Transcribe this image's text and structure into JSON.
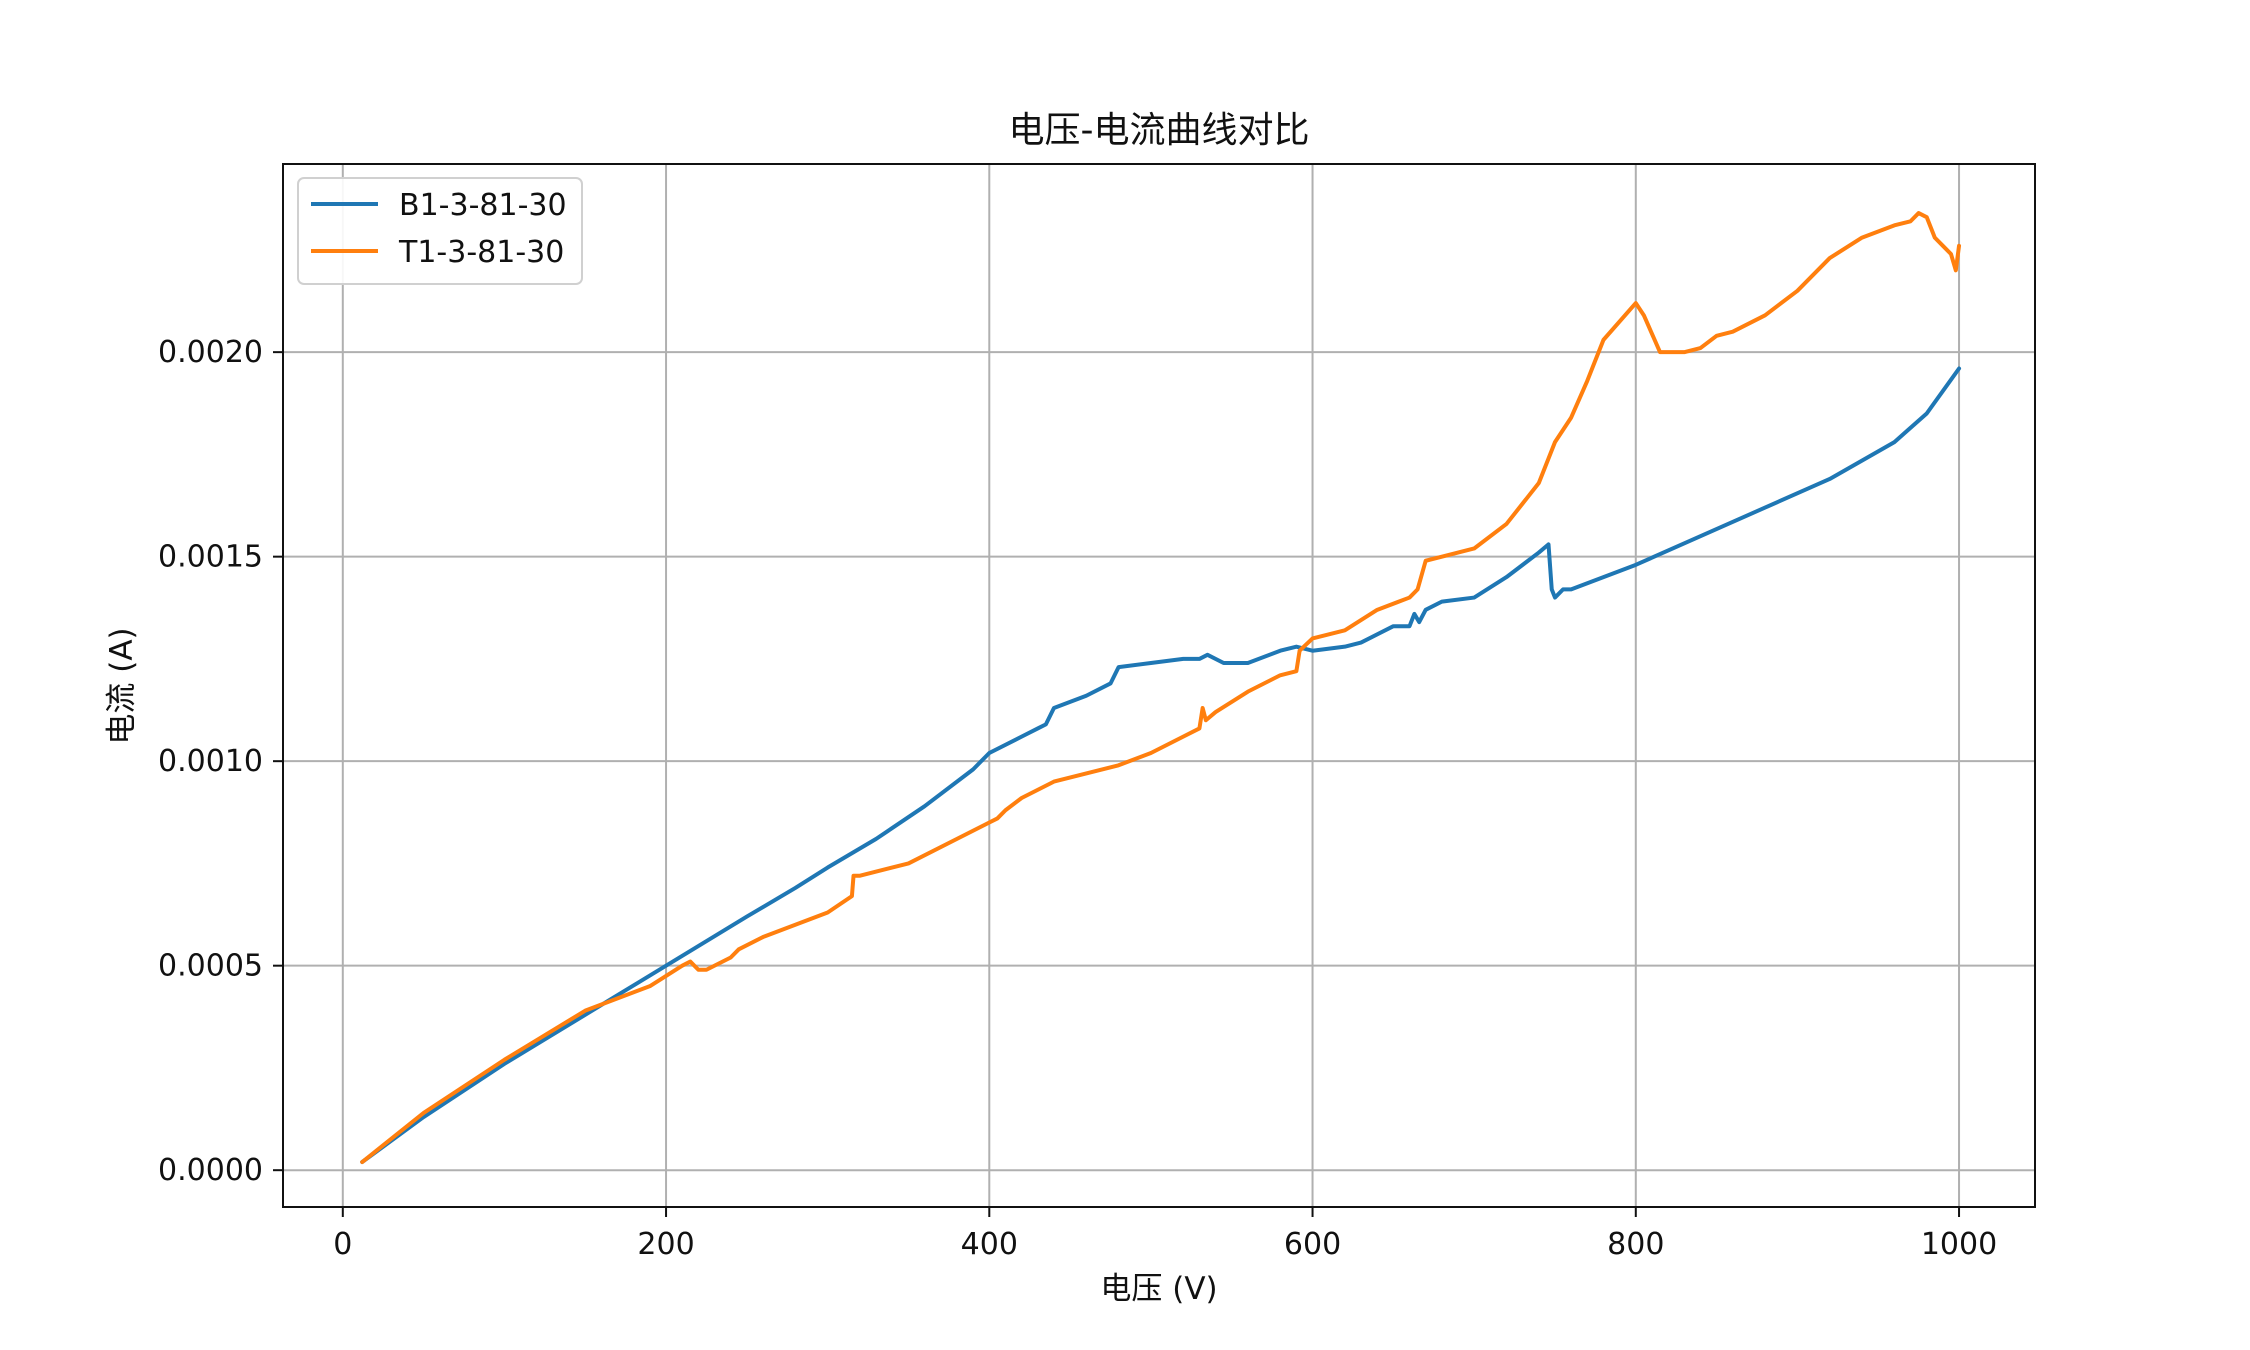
{
  "chart_data": {
    "type": "line",
    "title": "电压-电流曲线对比",
    "xlabel": "电压 (V)",
    "ylabel": "电流 (A)",
    "xlim": [
      -37,
      1047
    ],
    "ylim": [
      -9e-05,
      0.00246
    ],
    "xticks": [
      0,
      200,
      400,
      600,
      800,
      1000
    ],
    "xtick_labels": [
      "0",
      "200",
      "400",
      "600",
      "800",
      "1000"
    ],
    "yticks": [
      0.0,
      0.0005,
      0.001,
      0.0015,
      0.002
    ],
    "ytick_labels": [
      "0.0000",
      "0.0005",
      "0.0010",
      "0.0015",
      "0.0020"
    ],
    "grid": true,
    "legend_position": "top-left",
    "series": [
      {
        "name": "B1-3-81-30",
        "color": "#1f77b4",
        "x": [
          12,
          50,
          100,
          150,
          200,
          250,
          280,
          300,
          330,
          360,
          390,
          400,
          420,
          430,
          435,
          440,
          460,
          475,
          480,
          500,
          520,
          530,
          535,
          545,
          560,
          580,
          590,
          600,
          620,
          630,
          650,
          660,
          663,
          666,
          670,
          680,
          700,
          720,
          740,
          746,
          748,
          750,
          755,
          760,
          780,
          800,
          840,
          880,
          920,
          960,
          980,
          1000
        ],
        "values": [
          2e-05,
          0.00013,
          0.00026,
          0.00038,
          0.0005,
          0.00062,
          0.00069,
          0.00074,
          0.00081,
          0.00089,
          0.00098,
          0.00102,
          0.00106,
          0.00108,
          0.00109,
          0.00113,
          0.00116,
          0.00119,
          0.00123,
          0.00124,
          0.00125,
          0.00125,
          0.00126,
          0.00124,
          0.00124,
          0.00127,
          0.00128,
          0.00127,
          0.00128,
          0.00129,
          0.00133,
          0.00133,
          0.00136,
          0.00134,
          0.00137,
          0.00139,
          0.0014,
          0.00145,
          0.00151,
          0.00153,
          0.00142,
          0.0014,
          0.00142,
          0.00142,
          0.00145,
          0.00148,
          0.00155,
          0.00162,
          0.00169,
          0.00178,
          0.00185,
          0.00196
        ]
      },
      {
        "name": "T1-3-81-30",
        "color": "#ff7f0e",
        "x": [
          12,
          50,
          100,
          150,
          190,
          210,
          215,
          220,
          225,
          240,
          245,
          260,
          280,
          300,
          315,
          316,
          320,
          350,
          380,
          400,
          405,
          410,
          420,
          440,
          460,
          480,
          500,
          520,
          530,
          532,
          534,
          540,
          560,
          580,
          590,
          592,
          600,
          620,
          640,
          660,
          665,
          670,
          680,
          700,
          720,
          740,
          750,
          760,
          770,
          780,
          800,
          805,
          815,
          830,
          840,
          850,
          860,
          880,
          900,
          920,
          940,
          960,
          970,
          975,
          980,
          985,
          990,
          995,
          998,
          1000
        ],
        "values": [
          2e-05,
          0.00014,
          0.00027,
          0.00039,
          0.00045,
          0.0005,
          0.00051,
          0.00049,
          0.00049,
          0.00052,
          0.00054,
          0.00057,
          0.0006,
          0.00063,
          0.00067,
          0.00072,
          0.00072,
          0.00075,
          0.00081,
          0.00085,
          0.00086,
          0.00088,
          0.00091,
          0.00095,
          0.00097,
          0.00099,
          0.00102,
          0.00106,
          0.00108,
          0.00113,
          0.0011,
          0.00112,
          0.00117,
          0.00121,
          0.00122,
          0.00127,
          0.0013,
          0.00132,
          0.00137,
          0.0014,
          0.00142,
          0.00149,
          0.0015,
          0.00152,
          0.00158,
          0.00168,
          0.00178,
          0.00184,
          0.00193,
          0.00203,
          0.00212,
          0.00209,
          0.002,
          0.002,
          0.00201,
          0.00204,
          0.00205,
          0.00209,
          0.00215,
          0.00223,
          0.00228,
          0.00231,
          0.00232,
          0.00234,
          0.00233,
          0.00228,
          0.00226,
          0.00224,
          0.0022,
          0.00226
        ]
      }
    ]
  }
}
